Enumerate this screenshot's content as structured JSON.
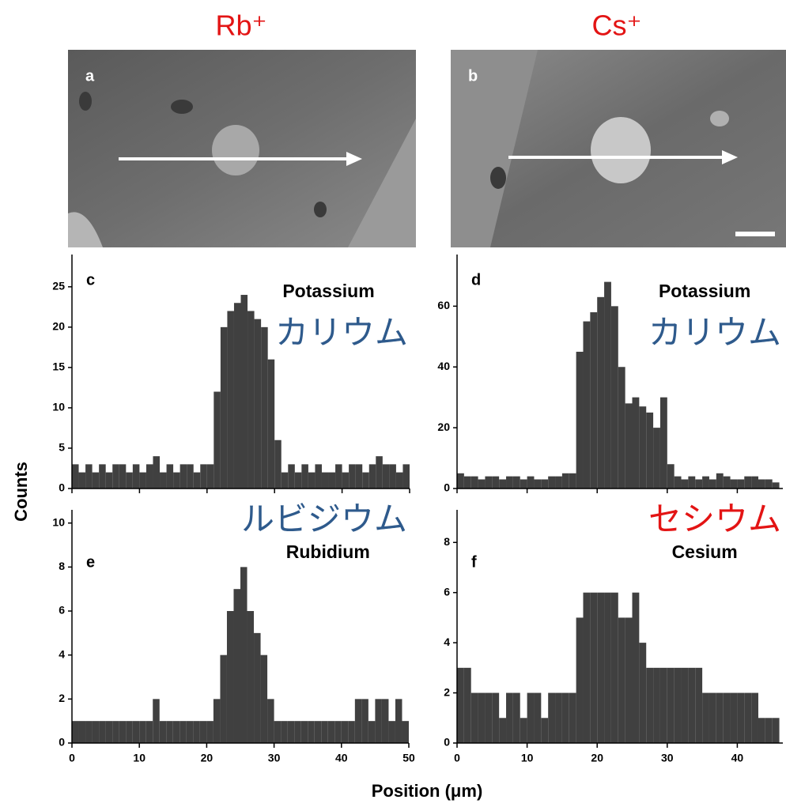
{
  "figure": {
    "columns": [
      "Rb⁺",
      "Cs⁺"
    ],
    "images": [
      {
        "label": "a"
      },
      {
        "label": "b"
      }
    ],
    "ylabel": "Counts",
    "xlabel": "Position (μm)"
  },
  "chart_data": [
    {
      "type": "histogram",
      "panel": "c",
      "title": "Potassium",
      "annotation": "カリウム",
      "annotation_color": "#2e5a8c",
      "color": "#404040",
      "bins": [
        0,
        1,
        2,
        3,
        4,
        5,
        6,
        7,
        8,
        9,
        10,
        11,
        12,
        13,
        14,
        15,
        16,
        17,
        18,
        19,
        20,
        21,
        22,
        23,
        24,
        25,
        26,
        27,
        28,
        29,
        30,
        31,
        32,
        33,
        34,
        35,
        36,
        37,
        38,
        39,
        40,
        41,
        42,
        43,
        44,
        45,
        46,
        47,
        48,
        49,
        50
      ],
      "counts": [
        3,
        2,
        3,
        2,
        3,
        2,
        3,
        3,
        2,
        3,
        2,
        3,
        4,
        2,
        3,
        2,
        3,
        3,
        2,
        3,
        3,
        12,
        20,
        22,
        23,
        24,
        22,
        21,
        20,
        16,
        6,
        2,
        3,
        2,
        3,
        2,
        3,
        2,
        2,
        3,
        2,
        3,
        3,
        2,
        3,
        4,
        3,
        3,
        2,
        3
      ],
      "xlim": [
        0,
        50
      ],
      "ylim": [
        0,
        29
      ],
      "xticks": [
        0,
        10,
        20,
        30,
        40,
        50
      ],
      "yticks": [
        0,
        5,
        10,
        15,
        20,
        25
      ],
      "show_xtick_labels": false
    },
    {
      "type": "histogram",
      "panel": "d",
      "title": "Potassium",
      "annotation": "カリウム",
      "annotation_color": "#2e5a8c",
      "color": "#404040",
      "bins": [
        0,
        1,
        2,
        3,
        4,
        5,
        6,
        7,
        8,
        9,
        10,
        11,
        12,
        13,
        14,
        15,
        16,
        17,
        18,
        19,
        20,
        21,
        22,
        23,
        24,
        25,
        26,
        27,
        28,
        29,
        30,
        31,
        32,
        33,
        34,
        35,
        36,
        37,
        38,
        39,
        40,
        41,
        42,
        43,
        44,
        45,
        46
      ],
      "counts": [
        5,
        4,
        4,
        3,
        4,
        4,
        3,
        4,
        4,
        3,
        4,
        3,
        3,
        4,
        4,
        5,
        5,
        45,
        55,
        58,
        63,
        68,
        60,
        40,
        28,
        30,
        27,
        25,
        20,
        30,
        8,
        4,
        3,
        4,
        3,
        4,
        3,
        5,
        4,
        3,
        3,
        4,
        4,
        3,
        3,
        2
      ],
      "xlim": [
        0,
        46.5
      ],
      "ylim": [
        0,
        77
      ],
      "xticks": [
        0,
        10,
        20,
        30,
        40
      ],
      "yticks": [
        0,
        20,
        40,
        60
      ],
      "show_xtick_labels": false
    },
    {
      "type": "histogram",
      "panel": "e",
      "title": "Rubidium",
      "annotation": "ルビジウム",
      "annotation_color": "#2e5a8c",
      "color": "#404040",
      "bins": [
        0,
        1,
        2,
        3,
        4,
        5,
        6,
        7,
        8,
        9,
        10,
        11,
        12,
        13,
        14,
        15,
        16,
        17,
        18,
        19,
        20,
        21,
        22,
        23,
        24,
        25,
        26,
        27,
        28,
        29,
        30,
        31,
        32,
        33,
        34,
        35,
        36,
        37,
        38,
        39,
        40,
        41,
        42,
        43,
        44,
        45,
        46,
        47,
        48,
        49,
        50
      ],
      "counts": [
        1,
        1,
        1,
        1,
        1,
        1,
        1,
        1,
        1,
        1,
        1,
        1,
        2,
        1,
        1,
        1,
        1,
        1,
        1,
        1,
        1,
        2,
        4,
        6,
        7,
        8,
        6,
        5,
        4,
        2,
        1,
        1,
        1,
        1,
        1,
        1,
        1,
        1,
        1,
        1,
        1,
        1,
        2,
        2,
        1,
        2,
        2,
        1,
        2,
        1
      ],
      "xlim": [
        0,
        50
      ],
      "ylim": [
        0,
        10.6
      ],
      "xticks": [
        0,
        10,
        20,
        30,
        40,
        50
      ],
      "yticks": [
        0,
        2,
        4,
        6,
        8,
        10
      ],
      "show_xtick_labels": true
    },
    {
      "type": "histogram",
      "panel": "f",
      "title": "Cesium",
      "annotation": "セシウム",
      "annotation_color": "#e31414",
      "color": "#404040",
      "bins": [
        0,
        1,
        2,
        3,
        4,
        5,
        6,
        7,
        8,
        9,
        10,
        11,
        12,
        13,
        14,
        15,
        16,
        17,
        18,
        19,
        20,
        21,
        22,
        23,
        24,
        25,
        26,
        27,
        28,
        29,
        30,
        31,
        32,
        33,
        34,
        35,
        36,
        37,
        38,
        39,
        40,
        41,
        42,
        43,
        44,
        45,
        46
      ],
      "counts": [
        3,
        3,
        2,
        2,
        2,
        2,
        1,
        2,
        2,
        1,
        2,
        2,
        1,
        2,
        2,
        2,
        2,
        5,
        6,
        6,
        6,
        6,
        6,
        5,
        5,
        6,
        4,
        3,
        3,
        3,
        3,
        3,
        3,
        3,
        3,
        2,
        2,
        2,
        2,
        2,
        2,
        2,
        2,
        1,
        1,
        1
      ],
      "xlim": [
        0,
        46.5
      ],
      "ylim": [
        0,
        9.3
      ],
      "xticks": [
        0,
        10,
        20,
        30,
        40
      ],
      "yticks": [
        0,
        2,
        4,
        6,
        8
      ],
      "show_xtick_labels": true
    }
  ]
}
